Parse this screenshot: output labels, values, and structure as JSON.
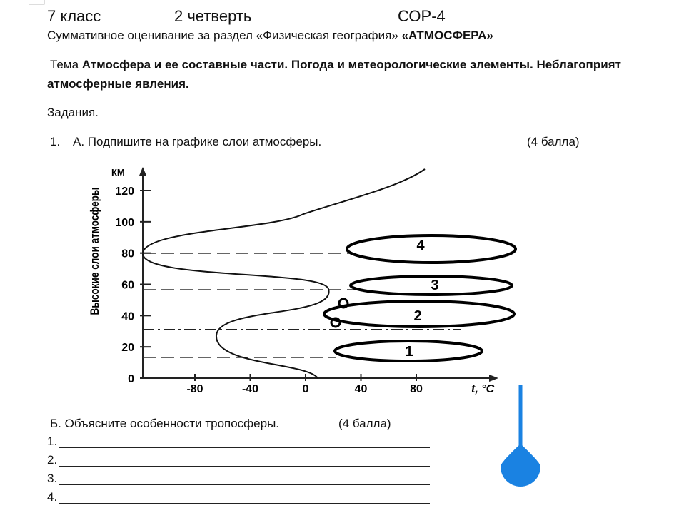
{
  "header": {
    "grade": "7 класс",
    "quarter": "2 четверть",
    "code": "СОР-4",
    "subtitle": "Суммативное оценивание за раздел «Физическая география»",
    "subtitle_bold": "«АТМОСФЕРА»"
  },
  "topic": {
    "label": "Тема",
    "line1": "Атмосфера и ее составные части. Погода и метеорологические элементы. Неблагоприят",
    "line2": "атмосферные явления."
  },
  "tasks_label": "Задания.",
  "task1": {
    "number": "1.",
    "text": "A. Подпишите на графике слои атмосферы.",
    "points": "(4 балла)"
  },
  "figure": {
    "y_label": "Высокие слои атмосферы",
    "y_unit": "КМ",
    "x_unit": "t, °C",
    "yticks": [
      0,
      20,
      40,
      60,
      80,
      100,
      120
    ],
    "xticks": [
      -80,
      -40,
      0,
      40,
      80
    ],
    "layer_labels": [
      "4",
      "3",
      "2",
      "1"
    ]
  },
  "task2": {
    "text": "Б. Объясните особенности тропосферы.",
    "points": "(4 балла)"
  },
  "answers": [
    "1.",
    "2.",
    "3.",
    "4."
  ]
}
